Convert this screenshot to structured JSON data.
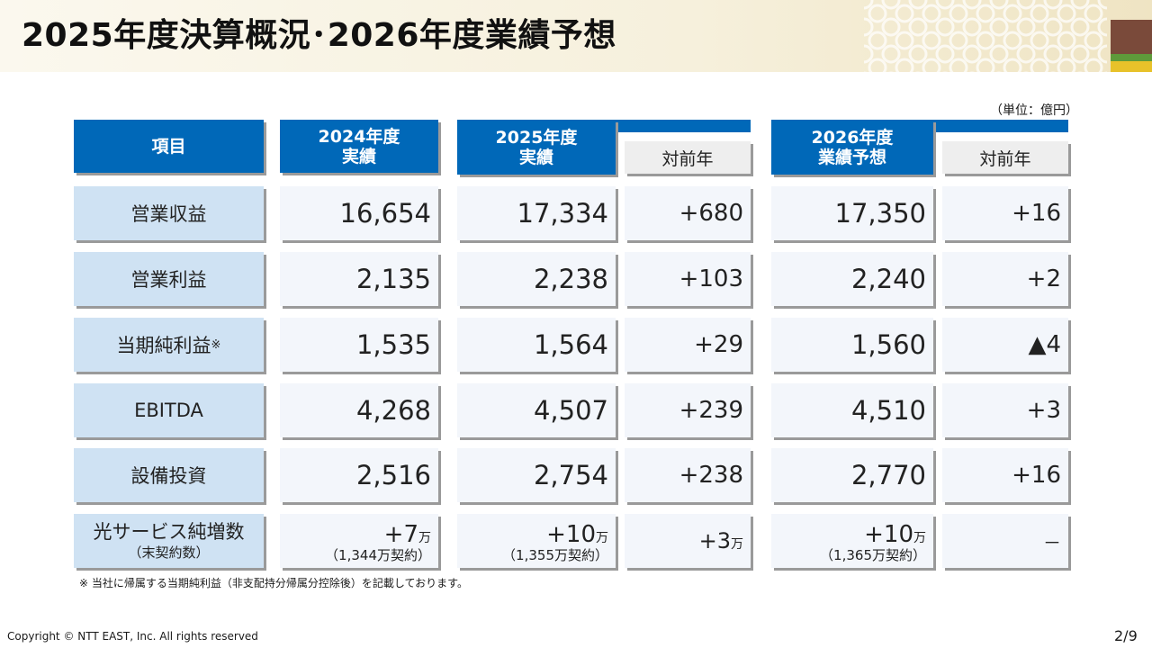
{
  "title": "2025年度決算概況･2026年度業績予想",
  "unit": "（単位：億円）",
  "headers": {
    "item": "項目",
    "fy2024": [
      "2024年度",
      "実績"
    ],
    "fy2025": [
      "2025年度",
      "実績"
    ],
    "fy2026": [
      "2026年度",
      "業績予想"
    ],
    "yoy": "対前年"
  },
  "rows": [
    {
      "label": "営業収益",
      "fy2024": "16,654",
      "fy2025": "17,334",
      "yoy2025": "+680",
      "fy2026": "17,350",
      "yoy2026": "+16"
    },
    {
      "label": "営業利益",
      "fy2024": "2,135",
      "fy2025": "2,238",
      "yoy2025": "+103",
      "fy2026": "2,240",
      "yoy2026": "+2"
    },
    {
      "label": "当期純利益",
      "mark": "※",
      "fy2024": "1,535",
      "fy2025": "1,564",
      "yoy2025": "+29",
      "fy2026": "1,560",
      "yoy2026": "▲4"
    },
    {
      "label": "EBITDA",
      "fy2024": "4,268",
      "fy2025": "4,507",
      "yoy2025": "+239",
      "fy2026": "4,510",
      "yoy2026": "+3"
    },
    {
      "label": "設備投資",
      "fy2024": "2,516",
      "fy2025": "2,754",
      "yoy2025": "+238",
      "fy2026": "2,770",
      "yoy2026": "+16"
    }
  ],
  "fiber_row": {
    "label": "光サービス純増数",
    "sublabel": "（末契約数）",
    "fy2024": {
      "value": "+7",
      "unit": "万",
      "contracts": "（1,344万契約）"
    },
    "fy2025": {
      "value": "+10",
      "unit": "万",
      "contracts": "（1,355万契約）"
    },
    "yoy2025": {
      "value": "+3",
      "unit": "万"
    },
    "fy2026": {
      "value": "+10",
      "unit": "万",
      "contracts": "（1,365万契約）"
    },
    "yoy2026": "－"
  },
  "note": "※ 当社に帰属する当期純利益（非支配持分帰属分控除後）を記載しております。",
  "copyright": "Copyright © NTT EAST, Inc. All rights reserved",
  "page_number": "2/9",
  "colors": {
    "header_blue": "#0068b8",
    "label_bg": "#cfe2f3",
    "value_bg": "#f3f6fb"
  }
}
